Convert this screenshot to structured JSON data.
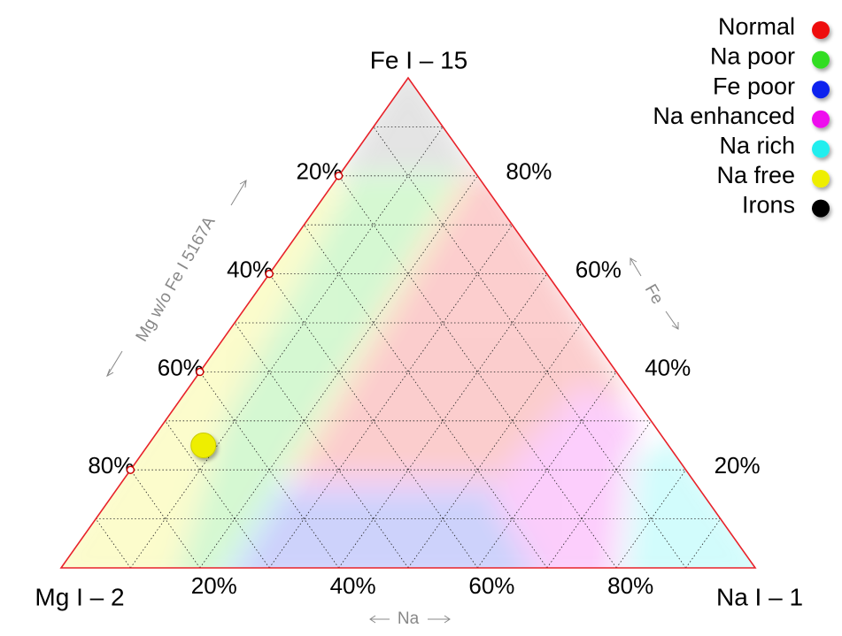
{
  "chart_data": {
    "type": "ternary",
    "axes": [
      {
        "vertex": "Mg I – 2",
        "label": "Mg w/o Fe I 5167A",
        "tick_markers": true,
        "ticks": [
          {
            "value": 20,
            "label": "20%"
          },
          {
            "value": 40,
            "label": "40%"
          },
          {
            "value": 60,
            "label": "60%"
          },
          {
            "value": 80,
            "label": "80%"
          }
        ]
      },
      {
        "vertex": "Na I – 1",
        "label": "Na",
        "tick_markers": false,
        "ticks": [
          {
            "value": 20,
            "label": "20%"
          },
          {
            "value": 40,
            "label": "40%"
          },
          {
            "value": 60,
            "label": "60%"
          },
          {
            "value": 80,
            "label": "80%"
          }
        ]
      },
      {
        "vertex": "Fe I – 15",
        "label": "Fe",
        "tick_markers": false,
        "ticks": [
          {
            "value": 20,
            "label": "20%"
          },
          {
            "value": 40,
            "label": "40%"
          },
          {
            "value": 60,
            "label": "60%"
          },
          {
            "value": 80,
            "label": "80%"
          }
        ]
      }
    ],
    "gridlines": [
      10,
      20,
      30,
      40,
      50,
      60,
      70,
      80,
      90
    ],
    "legend": "top-right",
    "series": [
      {
        "name": "Normal",
        "color": "#ee1111",
        "values": []
      },
      {
        "name": "Na poor",
        "color": "#33dd22",
        "values": []
      },
      {
        "name": "Fe poor",
        "color": "#1122ee",
        "values": []
      },
      {
        "name": "Na enhanced",
        "color": "#ee11ee",
        "values": []
      },
      {
        "name": "Na rich",
        "color": "#22eeee",
        "values": []
      },
      {
        "name": "Na free",
        "color": "#eeee00",
        "values": [
          [
            67,
            8,
            25
          ]
        ]
      },
      {
        "name": "Irons",
        "color": "#000000",
        "values": []
      }
    ]
  }
}
